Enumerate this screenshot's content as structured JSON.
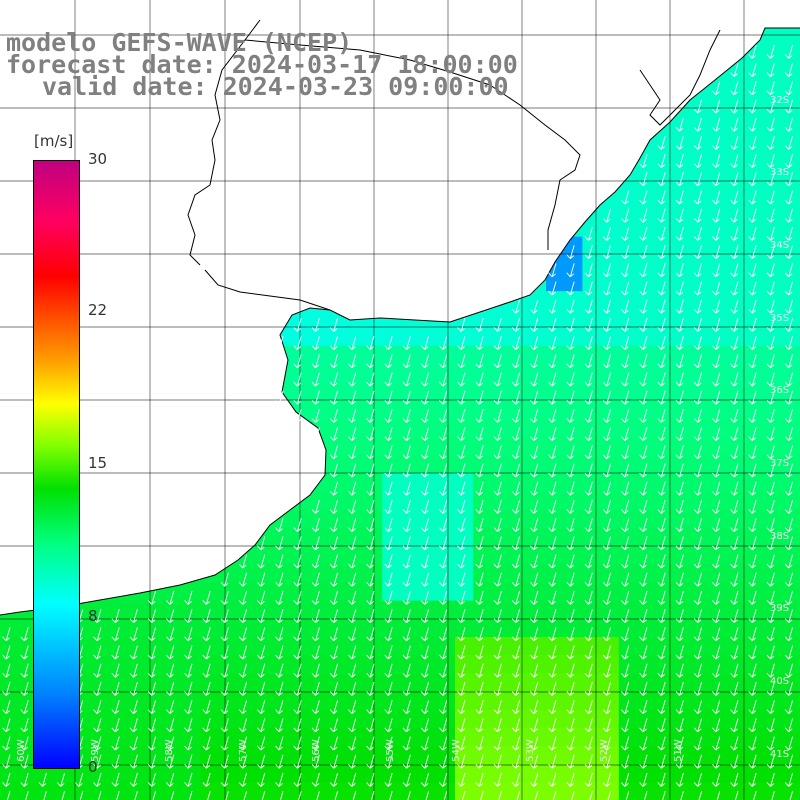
{
  "title": {
    "line1": "modelo GEFS-WAVE (NCEP)",
    "line2": "forecast date: 2024-03-17 18:00:00",
    "line3": "valid date: 2024-03-23 09:00:00"
  },
  "colorbar": {
    "unit": "[m/s]",
    "ticks": [
      "30",
      "22",
      "15",
      "8",
      "0"
    ],
    "tick_values": [
      30,
      22,
      15,
      8,
      0
    ],
    "colors": [
      "#0000ff",
      "#0080ff",
      "#00ffff",
      "#00ff80",
      "#00e000",
      "#80ff00",
      "#ffff00",
      "#ffa000",
      "#ff5000",
      "#ff0000",
      "#ff0060",
      "#c00080"
    ]
  },
  "grid_labels": {
    "lat": [
      "32S",
      "33S",
      "34S",
      "35S",
      "36S",
      "37S",
      "38S",
      "39S",
      "40S",
      "41S"
    ],
    "lon": [
      "60W",
      "59W",
      "58W",
      "57W",
      "56W",
      "55W",
      "54W",
      "53W",
      "52W",
      "51W"
    ]
  },
  "colors": {
    "land": "#ffffff",
    "coast": "#000000",
    "grid": "#000000",
    "arrow": "#ffffff"
  },
  "field": {
    "variable": "wind speed",
    "unit": "m/s",
    "wind_direction": "from NNE (arrows point SSW)",
    "range_shown": [
      4,
      14
    ]
  }
}
